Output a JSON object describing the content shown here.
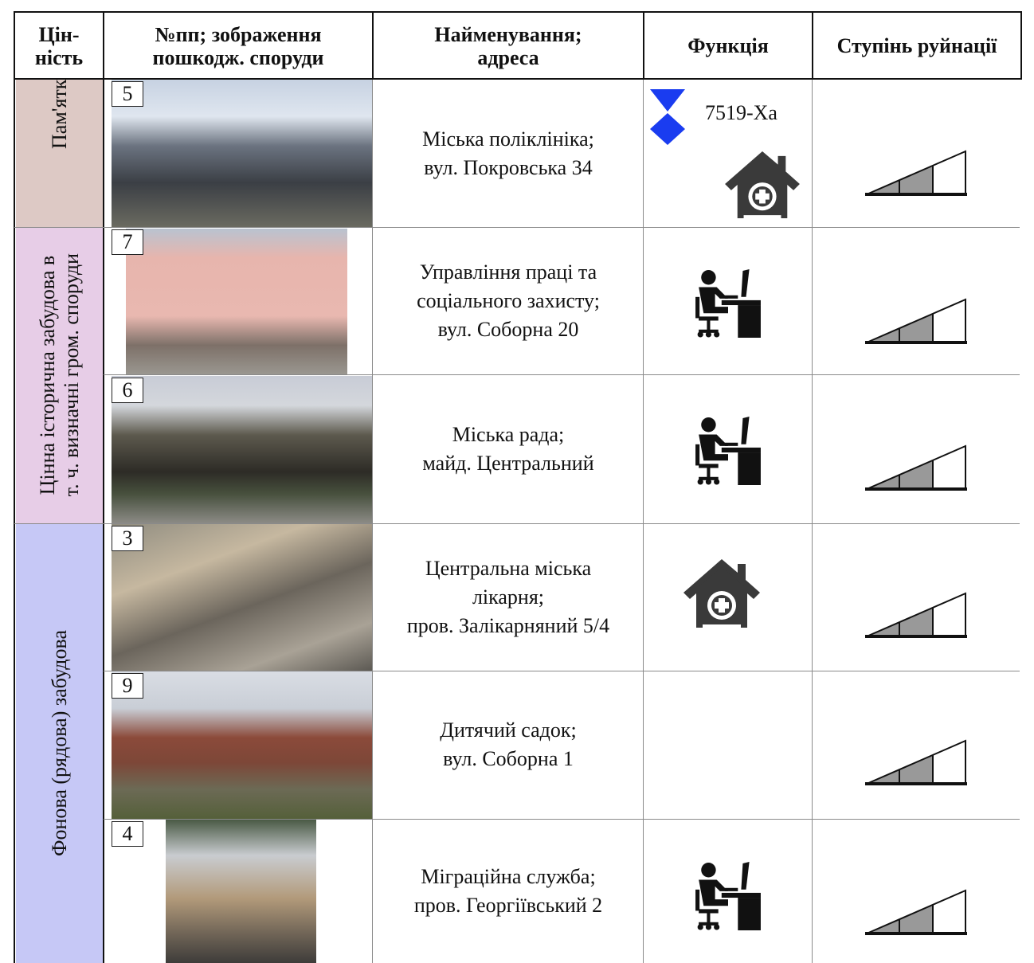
{
  "header": {
    "columns": [
      [
        "Цін-",
        "ність"
      ],
      [
        "№пп; зображення",
        "пошкодж. споруди"
      ],
      [
        "Найменування;",
        "адреса"
      ],
      [
        "Функція"
      ],
      [
        "Ступінь руйнації"
      ]
    ]
  },
  "groups": [
    {
      "label": [
        "Пам'ятк"
      ]
    },
    {
      "label": [
        "Цінна історична забудова в",
        "т. ч. визначні гром. споруди"
      ]
    },
    {
      "label": [
        "Фонова (рядова) забудова"
      ]
    }
  ],
  "rows": [
    {
      "number": 5,
      "name": [
        "Міська поліклініка;",
        "вул. Покровська 34"
      ],
      "code": "7519-Ха"
    },
    {
      "number": 7,
      "name": [
        "Управління праці та",
        "соціального захисту;",
        "вул. Соборна 20"
      ]
    },
    {
      "number": 6,
      "name": [
        "Міська рада;",
        "майд. Центральний"
      ]
    },
    {
      "number": 3,
      "name": [
        "Центральна міська",
        "лікарня;",
        "пров. Залікарняний 5/4"
      ]
    },
    {
      "number": 9,
      "name": [
        "Дитячий садок;",
        "вул. Соборна 1"
      ]
    },
    {
      "number": 4,
      "name": [
        "Міграційна служба;",
        "пров. Георгіївський 2"
      ]
    }
  ]
}
